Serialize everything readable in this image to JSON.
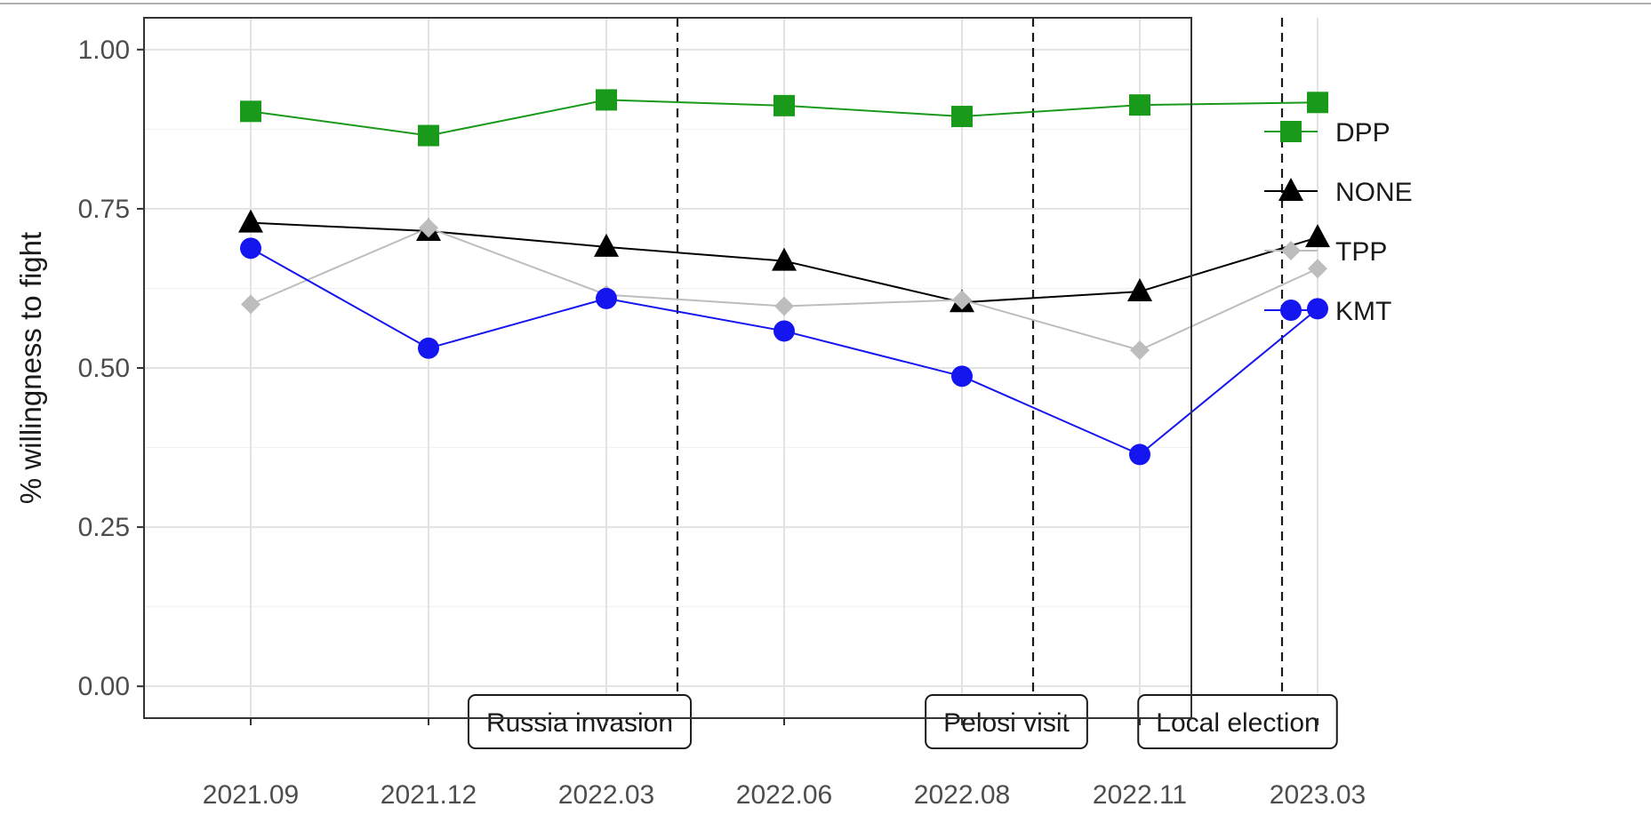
{
  "chart_data": {
    "type": "line",
    "title": "",
    "xlabel": "",
    "ylabel": "% willingness to fight",
    "ylim": [
      -0.05,
      1.05
    ],
    "y_ticks": [
      0.0,
      0.25,
      0.5,
      0.75,
      1.0
    ],
    "y_tick_labels": [
      "0.00",
      "0.25",
      "0.50",
      "0.75",
      "1.00"
    ],
    "categories": [
      "2021.09",
      "2021.12",
      "2022.03",
      "2022.06",
      "2022.08",
      "2022.11",
      "2023.03"
    ],
    "grid": true,
    "legend_position": "right",
    "series": [
      {
        "name": "DPP",
        "color": "#1a9a1a",
        "marker": "square",
        "values": [
          0.903,
          0.865,
          0.921,
          0.912,
          0.895,
          0.913,
          0.917
        ]
      },
      {
        "name": "NONE",
        "color": "#000000",
        "marker": "triangle",
        "values": [
          0.728,
          0.715,
          0.69,
          0.668,
          0.603,
          0.62,
          0.705
        ]
      },
      {
        "name": "TPP",
        "color": "#bdbdbd",
        "marker": "diamond",
        "values": [
          0.6,
          0.72,
          0.615,
          0.597,
          0.607,
          0.528,
          0.656
        ]
      },
      {
        "name": "KMT",
        "color": "#1515f0",
        "marker": "circle",
        "values": [
          0.688,
          0.531,
          0.609,
          0.558,
          0.487,
          0.364,
          0.593
        ]
      }
    ],
    "events": [
      {
        "label": "Russia invasion",
        "x_position": 2.4,
        "label_center": 1.85
      },
      {
        "label": "Pelosi visit",
        "x_position": 4.4,
        "label_center": 4.25
      },
      {
        "label": "Local election",
        "x_position": 5.8,
        "label_center": 5.55
      }
    ]
  }
}
